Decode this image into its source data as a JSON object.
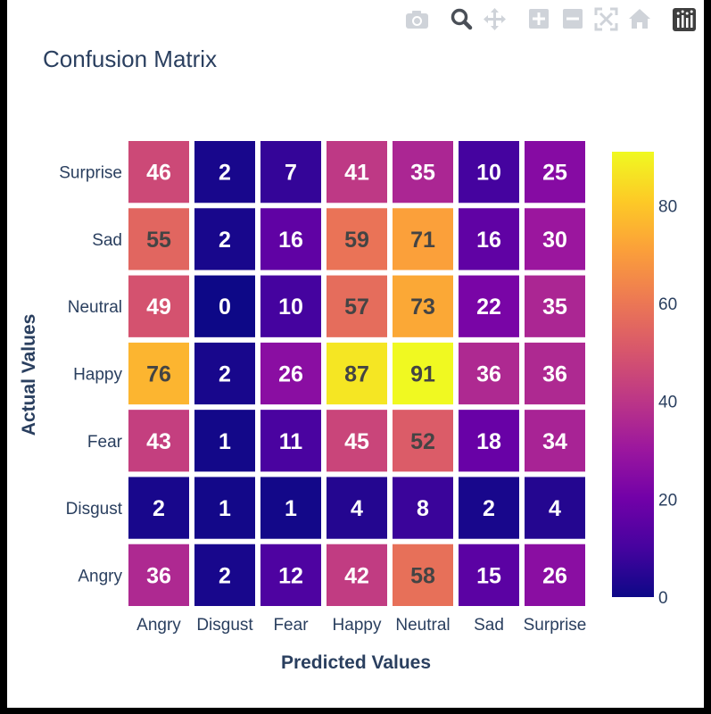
{
  "modebar": {
    "buttons": [
      {
        "name": "camera-icon"
      },
      {
        "name": "zoom-icon"
      },
      {
        "name": "pan-icon"
      },
      {
        "name": "zoom-in-icon"
      },
      {
        "name": "zoom-out-icon"
      },
      {
        "name": "autoscale-icon"
      },
      {
        "name": "reset-axes-icon"
      },
      {
        "name": "plotly-logo-icon"
      }
    ]
  },
  "chart_data": {
    "type": "heatmap",
    "title": "Confusion Matrix",
    "xlabel": "Predicted Values",
    "ylabel": "Actual Values",
    "x_categories": [
      "Angry",
      "Disgust",
      "Fear",
      "Happy",
      "Neutral",
      "Sad",
      "Surprise"
    ],
    "y_categories": [
      "Angry",
      "Disgust",
      "Fear",
      "Happy",
      "Neutral",
      "Sad",
      "Surprise"
    ],
    "z": [
      [
        36,
        2,
        12,
        42,
        58,
        15,
        26
      ],
      [
        2,
        1,
        1,
        4,
        8,
        2,
        4
      ],
      [
        43,
        1,
        11,
        45,
        52,
        18,
        34
      ],
      [
        76,
        2,
        26,
        87,
        91,
        36,
        36
      ],
      [
        49,
        0,
        10,
        57,
        73,
        22,
        35
      ],
      [
        55,
        2,
        16,
        59,
        71,
        16,
        30
      ],
      [
        46,
        2,
        7,
        41,
        35,
        10,
        25
      ]
    ],
    "zmin": 0,
    "zmax": 91,
    "colorscale": "Plasma",
    "colorbar_ticks": [
      "0",
      "20",
      "40",
      "60",
      "80"
    ],
    "colorbar_tick_values": [
      0,
      20,
      40,
      60,
      80
    ]
  }
}
